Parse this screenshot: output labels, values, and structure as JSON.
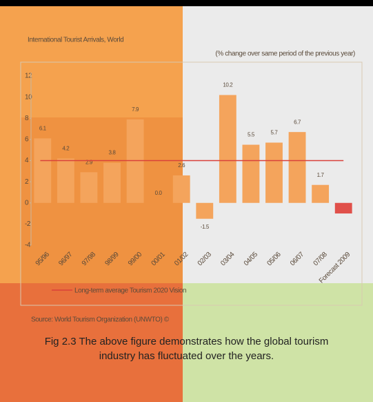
{
  "chart_data": {
    "type": "bar",
    "title": "International Tourist Arrivals, World",
    "subtitle": "(% change over same period of the previous year)",
    "categories": [
      "95/96",
      "96/97",
      "97/98",
      "98/99",
      "99/00",
      "00/01",
      "01/02",
      "02/03",
      "03/04",
      "04/05",
      "05/06",
      "06/07",
      "07/08",
      "Forecast 2009"
    ],
    "values": [
      6.1,
      4.2,
      2.9,
      3.8,
      7.9,
      0,
      2.6,
      -1.5,
      10.2,
      5.5,
      5.7,
      6.7,
      1.7,
      -1.0
    ],
    "value_labels": [
      "6.1",
      "4.2",
      "2.9",
      "3.8",
      "7.9",
      "0.0",
      "2.6",
      "-1.5",
      "10.2",
      "5.5",
      "5.7",
      "6.7",
      "1.7",
      null
    ],
    "colors": [
      "#f4a45c",
      "#f4a45c",
      "#f4a45c",
      "#f4a45c",
      "#f4a45c",
      "#f4a45c",
      "#f4a45c",
      "#f4a45c",
      "#f4a45c",
      "#f4a45c",
      "#f4a45c",
      "#f4a45c",
      "#f4a45c",
      "#e0504a"
    ],
    "average_line": {
      "label": "Long-term average Tourism 2020 Vision",
      "value": 4,
      "color": "#d9413a"
    },
    "ylim": [
      -4,
      12
    ],
    "yticks": [
      -4,
      -2,
      0,
      2,
      4,
      6,
      8,
      10,
      12
    ],
    "source": "Source: World Tourism Organization (UNWTO) ©",
    "caption": "Fig 2.3  The above figure demonstrates how the global tourism industry has fluctuated over the years."
  }
}
